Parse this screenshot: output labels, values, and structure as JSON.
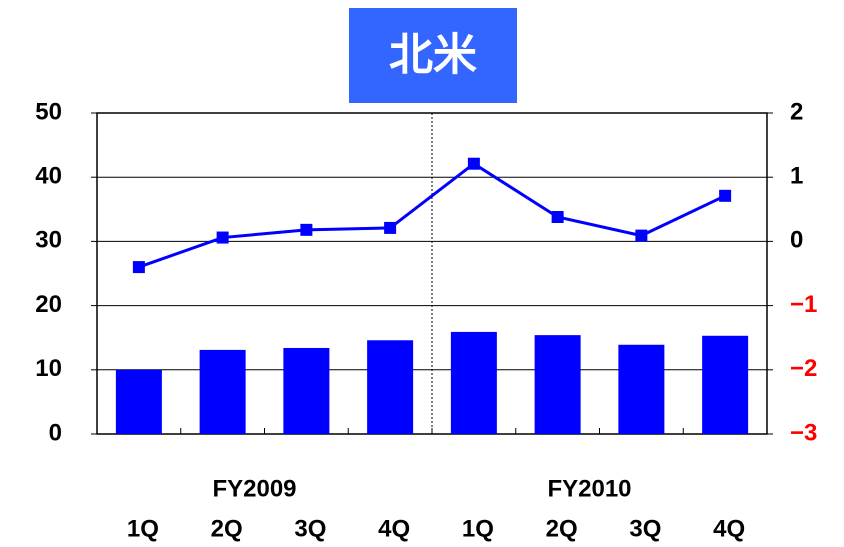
{
  "chart_data": {
    "type": "bar_line",
    "title": "北米",
    "title_background": "#3366ff",
    "categories": [
      "1Q",
      "2Q",
      "3Q",
      "4Q",
      "1Q",
      "2Q",
      "3Q",
      "4Q"
    ],
    "groups": [
      "FY2009",
      "FY2010"
    ],
    "series": [
      {
        "type": "bar",
        "color": "#0000ff",
        "values": [
          10,
          13.1,
          13.4,
          14.6,
          15.9,
          15.4,
          13.9,
          15.3
        ]
      },
      {
        "type": "line",
        "color": "#0000ff",
        "axis": "y2",
        "values": [
          -0.4,
          0.06,
          0.18,
          0.21,
          1.21,
          0.38,
          0.09,
          0.71
        ]
      }
    ],
    "ylim": [
      0,
      50
    ],
    "yticks": [
      0,
      10,
      20,
      30,
      40,
      50
    ],
    "y2lim": [
      -3,
      2
    ],
    "y2ticks": [
      {
        "value": -3,
        "label": "−3"
      },
      {
        "value": -2,
        "label": "−2"
      },
      {
        "value": -1,
        "label": "−1"
      },
      0,
      1,
      2
    ],
    "y2_negative_color": "#ff0000",
    "grid": true
  }
}
